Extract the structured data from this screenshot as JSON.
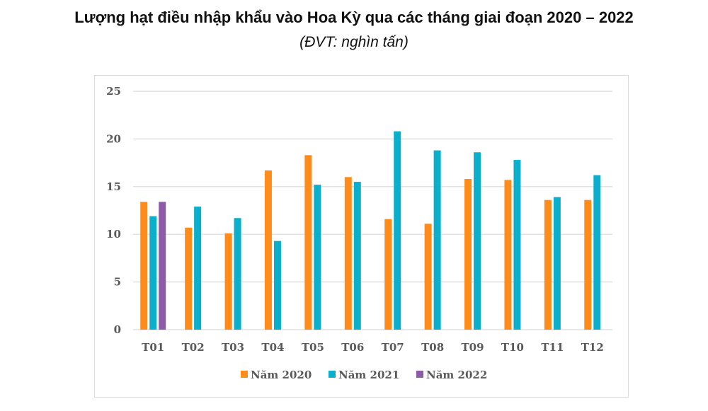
{
  "title": "Lượng hạt điều nhập khẩu vào Hoa Kỳ qua các tháng giai đoạn 2020 – 2022",
  "subtitle": "(ĐVT: nghìn tấn)",
  "chart_data": {
    "type": "bar",
    "title": "Lượng hạt điều nhập khẩu vào Hoa Kỳ qua các tháng giai đoạn 2020 – 2022",
    "subtitle": "(ĐVT: nghìn tấn)",
    "categories": [
      "T01",
      "T02",
      "T03",
      "T04",
      "T05",
      "T06",
      "T07",
      "T08",
      "T09",
      "T10",
      "T11",
      "T12"
    ],
    "series": [
      {
        "name": "Năm 2020",
        "color": "#FF8C1A",
        "values": [
          13.4,
          10.7,
          10.1,
          16.7,
          18.3,
          16.0,
          11.6,
          11.1,
          15.8,
          15.7,
          13.6,
          13.6
        ]
      },
      {
        "name": "Năm 2021",
        "color": "#0BAFCB",
        "values": [
          11.9,
          12.9,
          11.7,
          9.3,
          15.2,
          15.5,
          20.8,
          18.8,
          18.6,
          17.8,
          13.9,
          16.2
        ]
      },
      {
        "name": "Năm 2022",
        "color": "#8E5BA6",
        "values": [
          13.4,
          null,
          null,
          null,
          null,
          null,
          null,
          null,
          null,
          null,
          null,
          null
        ]
      }
    ],
    "yticks": [
      "0",
      "5",
      "10",
      "15",
      "20",
      "25"
    ],
    "ylim": [
      0,
      25
    ],
    "grid": true,
    "legend": "bottom"
  }
}
